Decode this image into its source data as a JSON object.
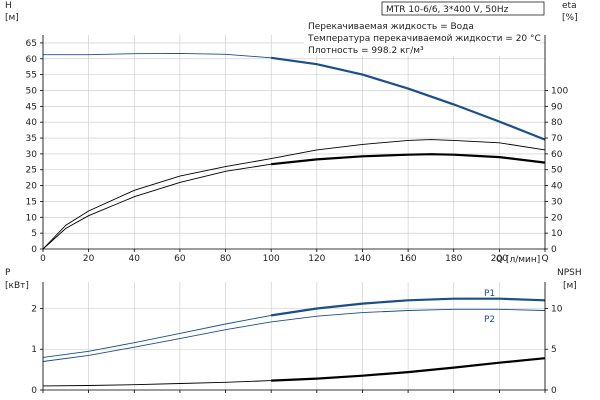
{
  "model_label": "MTR 10-6/6, 3*400 V, 50Hz",
  "info_lines": [
    "Перекачиваемая жидкость = Вода",
    "Температура перекачиваемой жидкости = 20 °C",
    "Плотность = 998.2 кг/м³"
  ],
  "colors": {
    "blue": "#1a4f8b",
    "black": "#000000",
    "grid": "#c8c8c8"
  },
  "chart_data": [
    {
      "type": "line",
      "x_axis": {
        "label": "Q [л/мин]",
        "ticks": [
          0,
          20,
          40,
          60,
          80,
          100,
          120,
          140,
          160,
          180,
          200
        ],
        "range": [
          0,
          220
        ]
      },
      "left_axis": {
        "label_top": "H",
        "label_unit": "[м]",
        "ticks": [
          0,
          5,
          10,
          15,
          20,
          25,
          30,
          35,
          40,
          45,
          50,
          55,
          60,
          65
        ],
        "range": [
          0,
          67.5
        ]
      },
      "right_axis": {
        "label_top": "eta",
        "label_unit": "[%]",
        "ticks": [
          0,
          10,
          20,
          30,
          40,
          50,
          60,
          70,
          80,
          90,
          100
        ],
        "range": [
          0,
          135
        ]
      },
      "grid": true,
      "series": [
        {
          "axis": "left",
          "color": "blue",
          "x": [
            0,
            20,
            40,
            60,
            80,
            100,
            120,
            140,
            160,
            180,
            200,
            220
          ],
          "y": [
            61.3,
            61.3,
            61.6,
            61.7,
            61.4,
            60.3,
            58.3,
            55.0,
            50.6,
            45.6,
            40.2,
            34.5
          ],
          "bold_from": 82
        },
        {
          "axis": "right",
          "x": [
            0,
            10,
            20,
            40,
            60,
            80,
            100,
            120,
            140,
            160,
            170,
            180,
            200,
            220
          ],
          "y": [
            0,
            15,
            24,
            37,
            46,
            52,
            57,
            62.5,
            66,
            68.5,
            69,
            68.5,
            67,
            62.5
          ]
        },
        {
          "axis": "right",
          "bold_from": 82,
          "x": [
            0,
            10,
            20,
            40,
            60,
            80,
            100,
            120,
            140,
            160,
            170,
            180,
            200,
            220
          ],
          "y": [
            0,
            13,
            21,
            33,
            42,
            49,
            53.5,
            56.5,
            58.5,
            59.5,
            59.8,
            59.5,
            58,
            54.5
          ]
        }
      ]
    },
    {
      "type": "line",
      "x_axis": {
        "range": [
          0,
          220
        ]
      },
      "left_axis": {
        "label_top": "P",
        "label_unit": "[кВт]",
        "ticks": [
          0,
          1,
          2
        ],
        "range": [
          0,
          2.65
        ]
      },
      "right_axis": {
        "label_top": "NPSH",
        "label_unit": "[м]",
        "ticks": [
          0,
          5,
          10
        ],
        "range": [
          0,
          13.25
        ]
      },
      "grid": true,
      "series": [
        {
          "name": "P1",
          "axis": "left",
          "color": "blue",
          "bold_from": 82,
          "x": [
            0,
            20,
            40,
            60,
            80,
            100,
            120,
            140,
            160,
            180,
            200,
            220
          ],
          "y": [
            0.8,
            0.95,
            1.16,
            1.39,
            1.62,
            1.83,
            2.0,
            2.12,
            2.2,
            2.24,
            2.24,
            2.2
          ]
        },
        {
          "name": "P2",
          "axis": "left",
          "color": "blue",
          "x": [
            0,
            20,
            40,
            60,
            80,
            100,
            120,
            140,
            160,
            180,
            200,
            220
          ],
          "y": [
            0.7,
            0.85,
            1.05,
            1.26,
            1.48,
            1.67,
            1.81,
            1.9,
            1.95,
            1.98,
            1.98,
            1.95
          ]
        },
        {
          "axis": "right",
          "color": "black",
          "bold_from": 82,
          "x": [
            0,
            20,
            40,
            60,
            80,
            100,
            120,
            140,
            160,
            180,
            200,
            220
          ],
          "y": [
            0.5,
            0.55,
            0.65,
            0.8,
            0.95,
            1.15,
            1.4,
            1.75,
            2.2,
            2.75,
            3.35,
            3.9
          ]
        }
      ]
    }
  ]
}
